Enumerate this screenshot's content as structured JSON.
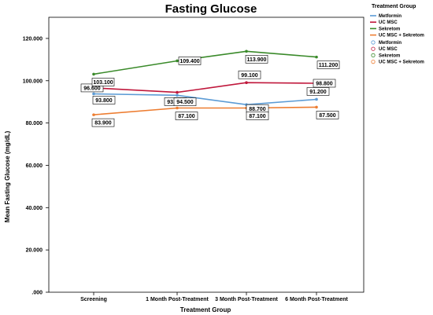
{
  "chart_data": {
    "type": "line",
    "title": "Fasting Glucose",
    "xlabel": "Treatment Group",
    "ylabel": "Mean Fasting Glucose (mg/dL)",
    "categories": [
      "Screening",
      "1 Month Post-Treatment",
      "3 Month Post-Treatment",
      "6 Month Post-Treatment"
    ],
    "ylim": [
      0,
      130
    ],
    "yticks": [
      0,
      20,
      40,
      60,
      80,
      100,
      120
    ],
    "ytick_labels": [
      ".000",
      "20.000",
      "40.000",
      "60.000",
      "80.000",
      "100.000",
      "120.000"
    ],
    "grid": false,
    "legend": {
      "title": "Treatment Group",
      "position": "top-right",
      "line_entries": [
        "Metformin",
        "UC MSC",
        "Sekretom",
        "UC MSC + Sekretom"
      ],
      "marker_entries": [
        "Metformin",
        "UC MSC",
        "Sekretom",
        "UC MSC + Sekretom"
      ]
    },
    "series": [
      {
        "name": "Metformin",
        "color": "#5b9bd5",
        "values": [
          93.8,
          93.1,
          88.7,
          91.2
        ],
        "labels": [
          "93.800",
          "93.100",
          "88.700",
          "91.200"
        ]
      },
      {
        "name": "UC MSC",
        "color": "#c0183c",
        "values": [
          96.6,
          94.5,
          99.1,
          98.8
        ],
        "labels": [
          "96.600",
          "94.500",
          "99.100",
          "98.800"
        ]
      },
      {
        "name": "Sekretom",
        "color": "#3a8a2a",
        "values": [
          103.1,
          109.4,
          113.9,
          111.2
        ],
        "labels": [
          "103.100",
          "109.400",
          "113.900",
          "111.200"
        ]
      },
      {
        "name": "UC MSC + Sekretom",
        "color": "#ed7d31",
        "values": [
          83.9,
          87.1,
          87.1,
          87.5
        ],
        "labels": [
          "83.900",
          "87.100",
          "87.100",
          "87.500"
        ]
      }
    ]
  }
}
